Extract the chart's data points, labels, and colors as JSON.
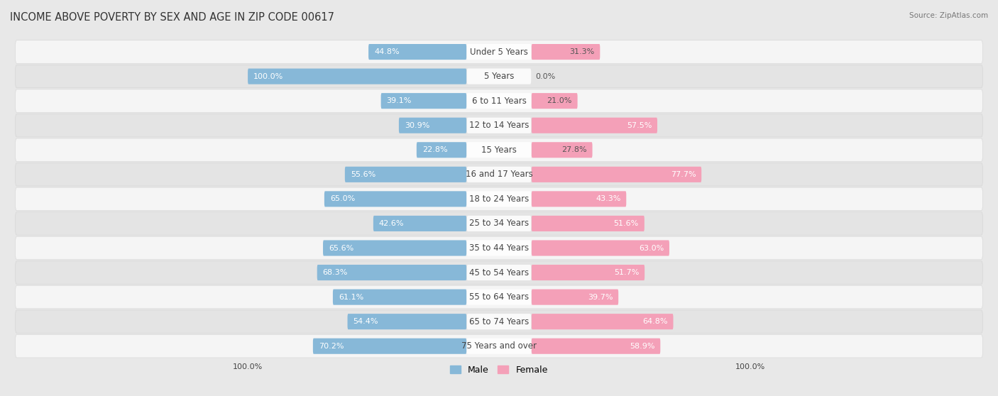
{
  "title": "INCOME ABOVE POVERTY BY SEX AND AGE IN ZIP CODE 00617",
  "source": "Source: ZipAtlas.com",
  "categories": [
    "Under 5 Years",
    "5 Years",
    "6 to 11 Years",
    "12 to 14 Years",
    "15 Years",
    "16 and 17 Years",
    "18 to 24 Years",
    "25 to 34 Years",
    "35 to 44 Years",
    "45 to 54 Years",
    "55 to 64 Years",
    "65 to 74 Years",
    "75 Years and over"
  ],
  "male": [
    44.8,
    100.0,
    39.1,
    30.9,
    22.8,
    55.6,
    65.0,
    42.6,
    65.6,
    68.3,
    61.1,
    54.4,
    70.2
  ],
  "female": [
    31.3,
    0.0,
    21.0,
    57.5,
    27.8,
    77.7,
    43.3,
    51.6,
    63.0,
    51.7,
    39.7,
    64.8,
    58.9
  ],
  "male_color": "#87b8d8",
  "female_color": "#f4a0b8",
  "background_color": "#e8e8e8",
  "row_bg_even": "#f5f5f5",
  "row_bg_odd": "#e4e4e4",
  "legend_male": "Male",
  "legend_female": "Female",
  "title_fontsize": 10.5,
  "category_fontsize": 8.5,
  "value_fontsize": 8.0,
  "source_fontsize": 7.5
}
